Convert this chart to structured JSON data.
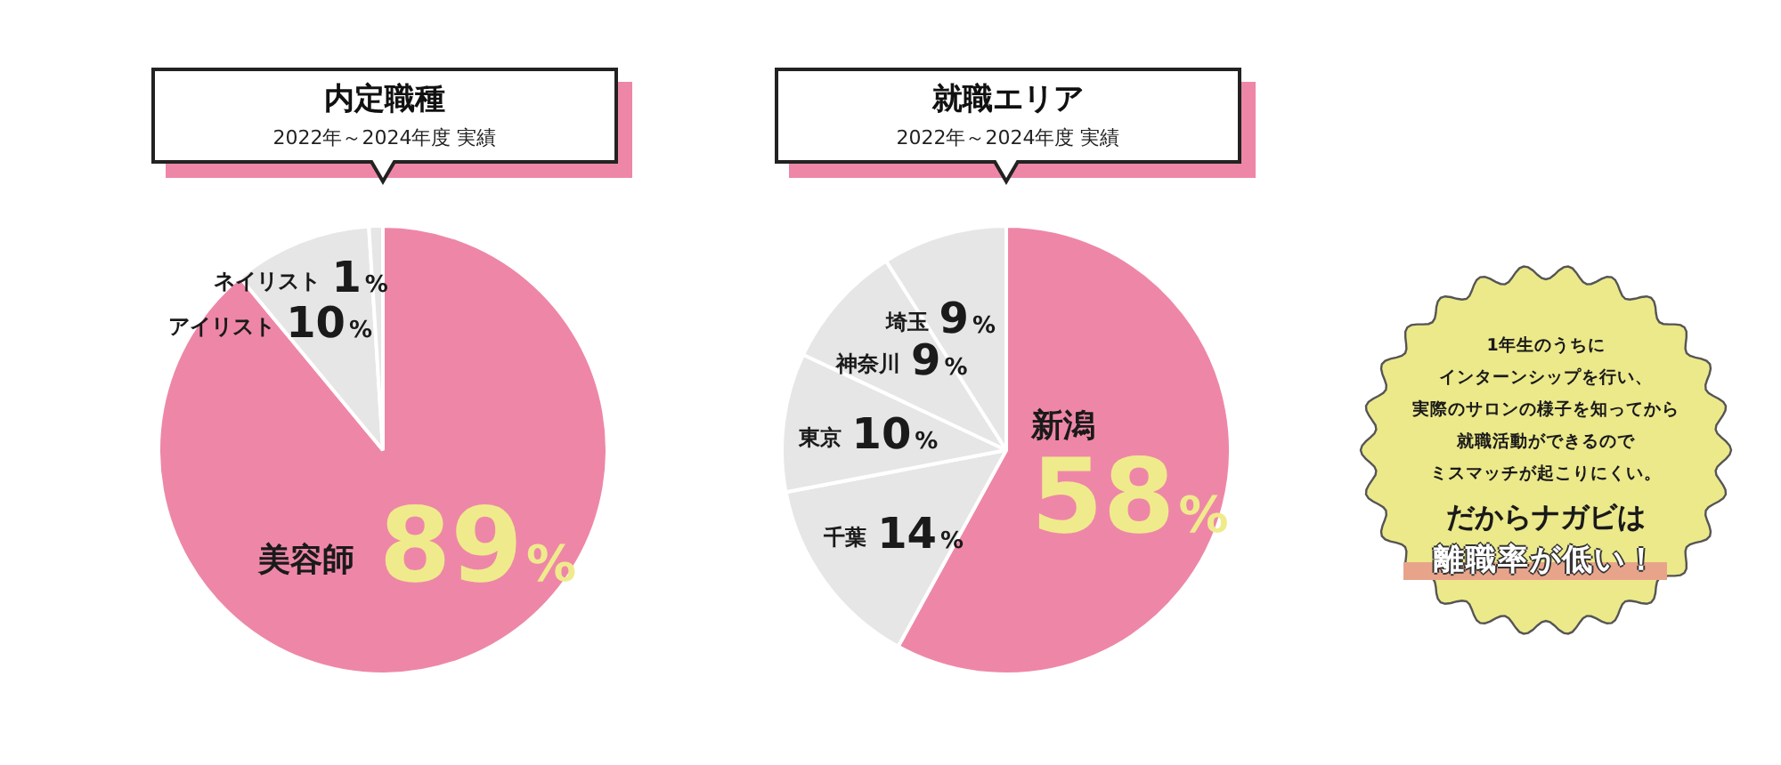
{
  "chart_data": [
    {
      "type": "pie",
      "title": "内定職種",
      "subtitle": "2022年～2024年度 実績",
      "categories": [
        "美容師",
        "アイリスト",
        "ネイリスト"
      ],
      "values": [
        89,
        10,
        1
      ],
      "colors": [
        "#ee87a7",
        "#e6e6e6",
        "#e6e6e6"
      ],
      "value_labels": [
        "89%",
        "10%",
        "1%"
      ]
    },
    {
      "type": "pie",
      "title": "就職エリア",
      "subtitle": "2022年～2024年度 実績",
      "categories": [
        "新潟",
        "千葉",
        "東京",
        "神奈川",
        "埼玉"
      ],
      "values": [
        58,
        14,
        10,
        9,
        9
      ],
      "colors": [
        "#ee87a7",
        "#e6e6e6",
        "#e6e6e6",
        "#e6e6e6",
        "#e6e6e6"
      ],
      "value_labels": [
        "58%",
        "14%",
        "10%",
        "9%",
        "9%"
      ]
    },
    {
      "type": "other",
      "annotations": [
        "1年生のうちに",
        "インターンシップを行い、",
        "実際のサロンの様子を知ってから",
        "就職活動ができるので",
        "ミスマッチが起こりにくい。",
        "だからナガビは",
        "離職率が低い！"
      ]
    }
  ]
}
